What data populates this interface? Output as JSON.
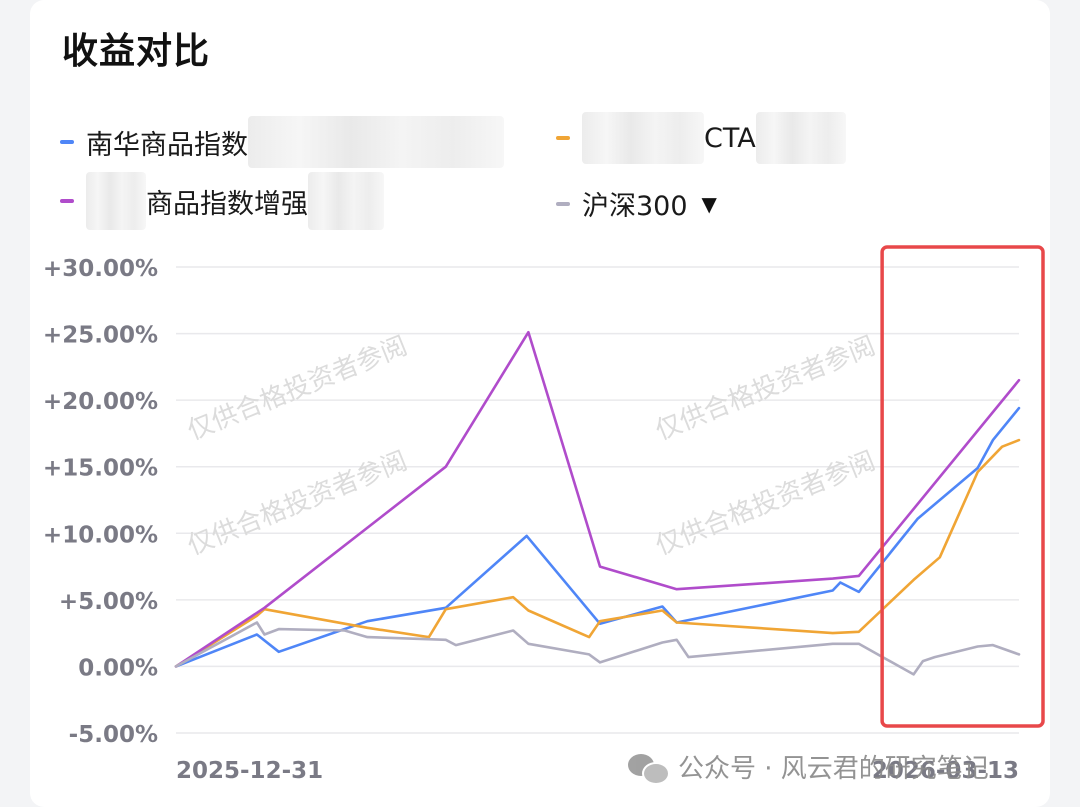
{
  "title": "收益对比",
  "legend": [
    {
      "label": "南华商品指数",
      "color": "#4f86f7",
      "redacted": true
    },
    {
      "label": "CTA",
      "color": "#f0a535",
      "redacted": true
    },
    {
      "label": "商品指数增强",
      "color": "#b04ccb",
      "redacted": true
    },
    {
      "label": "沪深300",
      "color": "#b0aec0",
      "dropdown": "▼"
    }
  ],
  "watermark_text": "仅供合格投资者参阅",
  "footer_watermark": "公众号 · 风云君的研究笔记",
  "highlight_color": "#e8484a",
  "chart_data": {
    "type": "line",
    "title": "收益对比",
    "x_start_label": "2025-12-31",
    "x_end_label": "2026-03-13",
    "ylim": [
      -5,
      30
    ],
    "yticks": [
      30,
      25,
      20,
      15,
      10,
      5,
      0,
      -5
    ],
    "ytick_labels": [
      "+30.00%",
      "+25.00%",
      "+20.00%",
      "+15.00%",
      "+10.00%",
      "+5.00%",
      "0.00%",
      "-5.00%"
    ],
    "grid": true,
    "highlight_range": [
      0.84,
      1.0
    ],
    "series": [
      {
        "name": "南华商品指数",
        "color": "#4f86f7",
        "points": [
          [
            0,
            0
          ],
          [
            0.096,
            2.4
          ],
          [
            0.122,
            1.1
          ],
          [
            0.227,
            3.4
          ],
          [
            0.32,
            4.4
          ],
          [
            0.416,
            9.8
          ],
          [
            0.503,
            3.2
          ],
          [
            0.577,
            4.5
          ],
          [
            0.594,
            3.3
          ],
          [
            0.779,
            5.7
          ],
          [
            0.788,
            6.3
          ],
          [
            0.81,
            5.6
          ],
          [
            0.88,
            11.1
          ],
          [
            0.951,
            14.9
          ],
          [
            0.969,
            17.0
          ],
          [
            1.0,
            19.4
          ]
        ]
      },
      {
        "name": "CTA",
        "color": "#f0a535",
        "points": [
          [
            0,
            0
          ],
          [
            0.096,
            3.8
          ],
          [
            0.105,
            4.3
          ],
          [
            0.227,
            2.9
          ],
          [
            0.3,
            2.2
          ],
          [
            0.32,
            4.3
          ],
          [
            0.4,
            5.2
          ],
          [
            0.418,
            4.2
          ],
          [
            0.49,
            2.2
          ],
          [
            0.503,
            3.4
          ],
          [
            0.577,
            4.2
          ],
          [
            0.594,
            3.3
          ],
          [
            0.779,
            2.5
          ],
          [
            0.81,
            2.6
          ],
          [
            0.875,
            6.5
          ],
          [
            0.906,
            8.2
          ],
          [
            0.951,
            14.6
          ],
          [
            0.98,
            16.5
          ],
          [
            1.0,
            17.0
          ]
        ]
      },
      {
        "name": "商品指数增强",
        "color": "#b04ccb",
        "points": [
          [
            0,
            0
          ],
          [
            0.105,
            4.4
          ],
          [
            0.32,
            15.0
          ],
          [
            0.418,
            25.1
          ],
          [
            0.503,
            7.5
          ],
          [
            0.594,
            5.8
          ],
          [
            0.779,
            6.6
          ],
          [
            0.81,
            6.8
          ],
          [
            1.0,
            21.5
          ]
        ]
      },
      {
        "name": "沪深300",
        "color": "#b0aec0",
        "points": [
          [
            0,
            0
          ],
          [
            0.096,
            3.3
          ],
          [
            0.105,
            2.4
          ],
          [
            0.122,
            2.8
          ],
          [
            0.2,
            2.7
          ],
          [
            0.227,
            2.2
          ],
          [
            0.32,
            2.0
          ],
          [
            0.332,
            1.6
          ],
          [
            0.4,
            2.7
          ],
          [
            0.418,
            1.7
          ],
          [
            0.49,
            0.9
          ],
          [
            0.503,
            0.3
          ],
          [
            0.577,
            1.8
          ],
          [
            0.594,
            2.0
          ],
          [
            0.608,
            0.7
          ],
          [
            0.779,
            1.7
          ],
          [
            0.81,
            1.7
          ],
          [
            0.875,
            -0.6
          ],
          [
            0.886,
            0.4
          ],
          [
            0.9,
            0.7
          ],
          [
            0.951,
            1.5
          ],
          [
            0.969,
            1.6
          ],
          [
            1.0,
            0.9
          ]
        ]
      }
    ]
  }
}
